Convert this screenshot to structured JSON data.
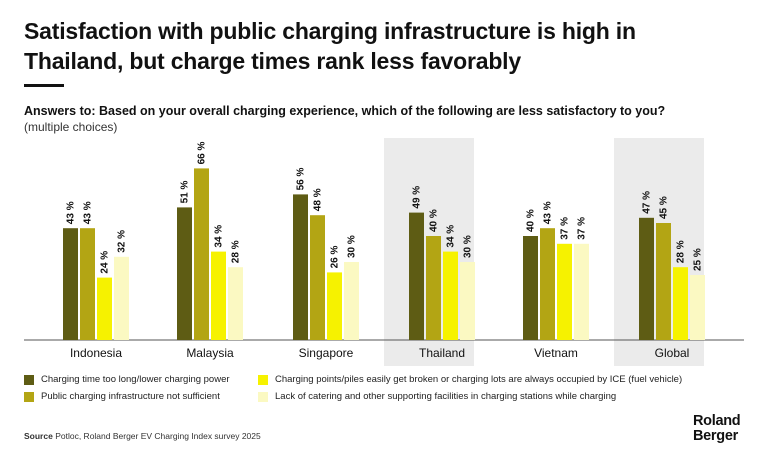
{
  "title_lines": [
    "Satisfaction with public charging infrastructure is high in",
    "Thailand, but charge times rank less favorably"
  ],
  "question": "Answers to: Based on your overall charging experience, which of the following are less satisfactory to you?",
  "subquestion": "(multiple choices)",
  "source_label": "Source",
  "source_text": "Potloc, Roland Berger EV Charging Index survey 2025",
  "logo_lines": [
    "Roland",
    "Berger"
  ],
  "colors": {
    "highlight_bg": "#ebebeb",
    "axis": "#555555"
  },
  "chart_data": {
    "type": "bar",
    "categories": [
      "Indonesia",
      "Malaysia",
      "Singapore",
      "Thailand",
      "Vietnam",
      "Global"
    ],
    "highlighted": [
      "Thailand",
      "Global"
    ],
    "value_suffix": "%",
    "ylim": [
      0,
      70
    ],
    "xlabel": "",
    "ylabel": "",
    "series": [
      {
        "name": "Charging time too long/lower charging power",
        "color": "#5e5c14",
        "values": [
          43,
          51,
          56,
          49,
          40,
          47
        ]
      },
      {
        "name": "Public charging infrastructure not sufficient",
        "color": "#b3a514",
        "values": [
          43,
          66,
          48,
          40,
          43,
          45
        ]
      },
      {
        "name": "Charging points/piles easily get broken or charging lots are always occupied by ICE (fuel vehicle)",
        "color": "#f6f200",
        "values": [
          24,
          34,
          26,
          34,
          37,
          28
        ]
      },
      {
        "name": "Lack of catering and other supporting facilities in charging stations while charging",
        "color": "#fbf9c2",
        "values": [
          32,
          28,
          30,
          30,
          37,
          25
        ]
      }
    ]
  }
}
